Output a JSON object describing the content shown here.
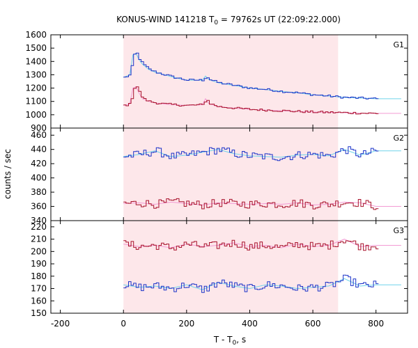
{
  "chart_data": {
    "type": "line",
    "title_main": "KONUS-WIND 141218 T",
    "title_sub": "0",
    "title_rest": " = 79762s UT (22:09:22.000)",
    "xlabel_main": "T - T",
    "xlabel_sub": "0",
    "xlabel_rest": ", s",
    "ylabel": "counts / sec",
    "xlim": [
      -230,
      900
    ],
    "xticks": [
      -200,
      0,
      200,
      400,
      600,
      800
    ],
    "shaded_interval": [
      0,
      680
    ],
    "panels": [
      {
        "name": "G1",
        "ylim": [
          900,
          1600
        ],
        "yticks": [
          900,
          1000,
          1100,
          1200,
          1300,
          1400,
          1500,
          1600
        ],
        "series": [
          {
            "color": "#1a32c8",
            "fit_color": "#6fd3ea",
            "x": [
              0,
              20,
              30,
              40,
              50,
              60,
              80,
              100,
              130,
              160,
              200,
              250,
              260,
              270,
              300,
              350,
              400,
              450,
              500,
              550,
              600,
              650,
              700,
              750,
              800
            ],
            "y": [
              1280,
              1300,
              1450,
              1460,
              1410,
              1380,
              1340,
              1320,
              1300,
              1280,
              1260,
              1260,
              1290,
              1265,
              1240,
              1220,
              1200,
              1190,
              1175,
              1165,
              1150,
              1140,
              1130,
              1125,
              1120
            ]
          },
          {
            "color": "#a8102a",
            "fit_color": "#f39ad4",
            "x": [
              0,
              20,
              30,
              40,
              50,
              60,
              80,
              100,
              130,
              160,
              200,
              250,
              260,
              270,
              300,
              350,
              400,
              450,
              500,
              550,
              600,
              650,
              700,
              750,
              800
            ],
            "y": [
              1070,
              1080,
              1200,
              1210,
              1160,
              1120,
              1100,
              1090,
              1080,
              1075,
              1070,
              1075,
              1120,
              1085,
              1060,
              1050,
              1040,
              1035,
              1030,
              1025,
              1020,
              1018,
              1015,
              1012,
              1010
            ]
          }
        ]
      },
      {
        "name": "G2",
        "ylim": [
          340,
          470
        ],
        "yticks": [
          340,
          360,
          380,
          400,
          420,
          440,
          460
        ],
        "series": [
          {
            "color": "#1a32c8",
            "fit_color": "#6fd3ea",
            "x": [
              0,
              50,
              100,
              150,
              200,
              250,
              300,
              350,
              400,
              450,
              500,
              550,
              600,
              650,
              700,
              750,
              800
            ],
            "y": [
              430,
              433,
              438,
              430,
              432,
              436,
              440,
              434,
              431,
              430,
              429,
              432,
              433,
              431,
              440,
              432,
              438
            ]
          },
          {
            "color": "#a8102a",
            "fit_color": "#f39ad4",
            "x": [
              0,
              50,
              100,
              150,
              200,
              250,
              300,
              350,
              400,
              450,
              500,
              550,
              600,
              650,
              700,
              750,
              800
            ],
            "y": [
              364,
              365,
              363,
              366,
              364,
              362,
              365,
              364,
              363,
              364,
              363,
              365,
              362,
              363,
              366,
              365,
              360
            ]
          }
        ]
      },
      {
        "name": "G3",
        "ylim": [
          150,
          225
        ],
        "yticks": [
          150,
          160,
          170,
          180,
          190,
          200,
          210,
          220
        ],
        "series": [
          {
            "color": "#a8102a",
            "fit_color": "#f39ad4",
            "x": [
              0,
              50,
              100,
              150,
              200,
              250,
              300,
              350,
              400,
              450,
              500,
              550,
              600,
              650,
              700,
              750,
              800
            ],
            "y": [
              206,
              204,
              205,
              203,
              206,
              204,
              205,
              207,
              204,
              205,
              203,
              206,
              204,
              205,
              210,
              204,
              205
            ]
          },
          {
            "color": "#1a32c8",
            "fit_color": "#6fd3ea",
            "x": [
              0,
              50,
              100,
              150,
              200,
              250,
              300,
              350,
              400,
              450,
              500,
              550,
              600,
              650,
              700,
              750,
              800
            ],
            "y": [
              173,
              171,
              172,
              170,
              173,
              169,
              175,
              172,
              170,
              173,
              172,
              170,
              171,
              172,
              178,
              172,
              173
            ]
          }
        ]
      }
    ]
  }
}
